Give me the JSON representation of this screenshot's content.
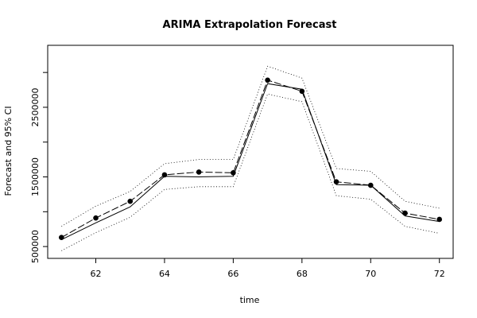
{
  "chart_data": {
    "type": "line",
    "title": "ARIMA Extrapolation Forecast",
    "xlabel": "time",
    "ylabel": "Forecast and 95% CI",
    "xlim": [
      60.6,
      72.4
    ],
    "ylim": [
      330000,
      3390000
    ],
    "xticks": [
      62,
      64,
      66,
      68,
      70,
      72
    ],
    "yticks": [
      500000,
      1500000,
      2500000
    ],
    "ytick_labels": [
      "500000",
      "1500000",
      "2500000"
    ],
    "x": [
      61,
      62,
      63,
      64,
      65,
      66,
      67,
      68,
      69,
      70,
      71,
      72
    ],
    "series": [
      {
        "role": "actual",
        "style": "points+dashed",
        "values": [
          630000,
          910000,
          1150000,
          1530000,
          1570000,
          1560000,
          2890000,
          2730000,
          1430000,
          1380000,
          980000,
          890000
        ]
      },
      {
        "role": "forecast",
        "style": "solid",
        "values": [
          600000,
          840000,
          1070000,
          1510000,
          1500000,
          1510000,
          2840000,
          2760000,
          1390000,
          1380000,
          940000,
          860000
        ]
      },
      {
        "role": "upper",
        "style": "dotted",
        "values": [
          790000,
          1080000,
          1290000,
          1690000,
          1750000,
          1750000,
          3090000,
          2920000,
          1620000,
          1580000,
          1150000,
          1050000
        ]
      },
      {
        "role": "lower",
        "style": "dotted",
        "values": [
          440000,
          700000,
          920000,
          1320000,
          1360000,
          1360000,
          2690000,
          2580000,
          1230000,
          1180000,
          790000,
          690000
        ]
      }
    ],
    "grid": false,
    "legend": "none"
  }
}
